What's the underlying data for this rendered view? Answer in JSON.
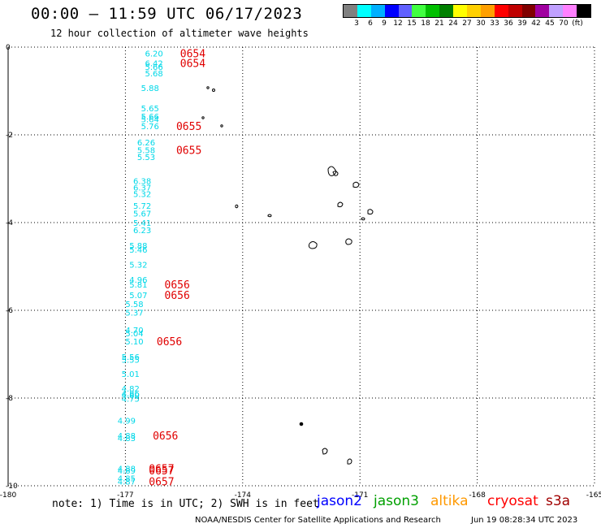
{
  "header": {
    "title": "00:00 — 11:59 UTC 06/17/2023",
    "subtitle": "12 hour collection of altimeter wave heights"
  },
  "scale": {
    "colors": [
      "#808080",
      "#00ffff",
      "#00b0ff",
      "#0000ff",
      "#6060ff",
      "#40ff40",
      "#00c000",
      "#008000",
      "#ffff00",
      "#ffd000",
      "#ffa000",
      "#ff0000",
      "#c00000",
      "#800000",
      "#a000a0",
      "#c0a0ff",
      "#ff80ff",
      "#000000"
    ],
    "labels": [
      "3",
      "6",
      "9",
      "12",
      "15",
      "18",
      "21",
      "24",
      "27",
      "30",
      "33",
      "36",
      "39",
      "42",
      "45",
      "70",
      "(ft)"
    ]
  },
  "map": {
    "x_range": [
      -180,
      -165
    ],
    "y_range": [
      -10,
      0
    ],
    "x_ticks": [
      "-180",
      "-177",
      "-174",
      "-171",
      "-168",
      "-165"
    ],
    "y_ticks": [
      "0",
      "-2",
      "-4",
      "-6",
      "-8",
      "-10"
    ],
    "observations": [
      {
        "lon": -176.5,
        "lat": -0.14,
        "value": "6.20"
      },
      {
        "lon": -176.5,
        "lat": -0.36,
        "value": "6.42"
      },
      {
        "lon": -176.5,
        "lat": -0.44,
        "value": "5.66"
      },
      {
        "lon": -176.5,
        "lat": -0.59,
        "value": "5.68"
      },
      {
        "lon": -176.6,
        "lat": -0.93,
        "value": "5.88"
      },
      {
        "lon": -176.6,
        "lat": -1.39,
        "value": "5.65"
      },
      {
        "lon": -176.6,
        "lat": -1.57,
        "value": "5.66"
      },
      {
        "lon": -176.6,
        "lat": -1.64,
        "value": "5.64"
      },
      {
        "lon": -176.6,
        "lat": -1.8,
        "value": "5.76"
      },
      {
        "lon": -176.7,
        "lat": -2.17,
        "value": "6.26"
      },
      {
        "lon": -176.7,
        "lat": -2.34,
        "value": "5.58"
      },
      {
        "lon": -176.7,
        "lat": -2.5,
        "value": "5.53"
      },
      {
        "lon": -176.8,
        "lat": -3.05,
        "value": "6.38"
      },
      {
        "lon": -176.8,
        "lat": -3.19,
        "value": "6.37"
      },
      {
        "lon": -176.8,
        "lat": -3.34,
        "value": "5.32"
      },
      {
        "lon": -176.8,
        "lat": -3.61,
        "value": "5.72"
      },
      {
        "lon": -176.8,
        "lat": -3.79,
        "value": "5.67"
      },
      {
        "lon": -176.8,
        "lat": -4.0,
        "value": "5.41"
      },
      {
        "lon": -176.8,
        "lat": -4.17,
        "value": "6.23"
      },
      {
        "lon": -176.9,
        "lat": -4.52,
        "value": "5.88"
      },
      {
        "lon": -176.9,
        "lat": -4.61,
        "value": "5.46"
      },
      {
        "lon": -176.9,
        "lat": -4.95,
        "value": "5.32"
      },
      {
        "lon": -176.9,
        "lat": -5.3,
        "value": "4.96"
      },
      {
        "lon": -176.9,
        "lat": -5.41,
        "value": "5.81"
      },
      {
        "lon": -176.9,
        "lat": -5.65,
        "value": "5.07"
      },
      {
        "lon": -177.0,
        "lat": -5.85,
        "value": "5.58"
      },
      {
        "lon": -177.0,
        "lat": -6.05,
        "value": "5.37"
      },
      {
        "lon": -177.0,
        "lat": -6.44,
        "value": "4.70"
      },
      {
        "lon": -177.0,
        "lat": -6.52,
        "value": "5.04"
      },
      {
        "lon": -177.0,
        "lat": -6.7,
        "value": "5.10"
      },
      {
        "lon": -177.1,
        "lat": -7.06,
        "value": "5.56"
      },
      {
        "lon": -177.1,
        "lat": -7.12,
        "value": "5.55"
      },
      {
        "lon": -177.1,
        "lat": -7.44,
        "value": "5.01"
      },
      {
        "lon": -177.1,
        "lat": -7.78,
        "value": "4.82"
      },
      {
        "lon": -177.1,
        "lat": -7.89,
        "value": "4.86"
      },
      {
        "lon": -177.1,
        "lat": -7.93,
        "value": "4.80"
      },
      {
        "lon": -177.1,
        "lat": -8.01,
        "value": "4.75"
      },
      {
        "lon": -177.2,
        "lat": -8.51,
        "value": "4.99"
      },
      {
        "lon": -177.2,
        "lat": -8.85,
        "value": "4.88"
      },
      {
        "lon": -177.2,
        "lat": -8.91,
        "value": "4.83"
      },
      {
        "lon": -177.2,
        "lat": -9.6,
        "value": "4.88"
      },
      {
        "lon": -177.2,
        "lat": -9.65,
        "value": "4.89"
      },
      {
        "lon": -177.2,
        "lat": -9.82,
        "value": "4.85"
      },
      {
        "lon": -177.2,
        "lat": -9.9,
        "value": "4.87"
      }
    ],
    "pass_times": [
      {
        "lon": -175.6,
        "lat": -0.14,
        "label": "0654"
      },
      {
        "lon": -175.6,
        "lat": -0.36,
        "label": "0654"
      },
      {
        "lon": -175.7,
        "lat": -1.8,
        "label": "0655"
      },
      {
        "lon": -175.7,
        "lat": -2.34,
        "label": "0655"
      },
      {
        "lon": -176.0,
        "lat": -5.41,
        "label": "0656"
      },
      {
        "lon": -176.0,
        "lat": -5.65,
        "label": "0656"
      },
      {
        "lon": -176.2,
        "lat": -6.7,
        "label": "0656"
      },
      {
        "lon": -176.3,
        "lat": -8.85,
        "label": "0656"
      },
      {
        "lon": -176.4,
        "lat": -9.6,
        "label": "0657"
      },
      {
        "lon": -176.4,
        "lat": -9.65,
        "label": "0657"
      },
      {
        "lon": -176.4,
        "lat": -9.9,
        "label": "0657"
      }
    ]
  },
  "note": "note: 1) Time is in UTC; 2) SWH is in feet",
  "legend": [
    {
      "name": "jason2",
      "color": "#0000ff"
    },
    {
      "name": "jason3",
      "color": "#00a000"
    },
    {
      "name": "altika",
      "color": "#ff9900"
    },
    {
      "name": "cryosat",
      "color": "#ff0000"
    },
    {
      "name": "s3a",
      "color": "#a00000"
    }
  ],
  "credit": "NOAA/NESDIS Center for Satellite Applications and Research",
  "credit_time": "Jun 19 08:28:34 UTC 2023"
}
